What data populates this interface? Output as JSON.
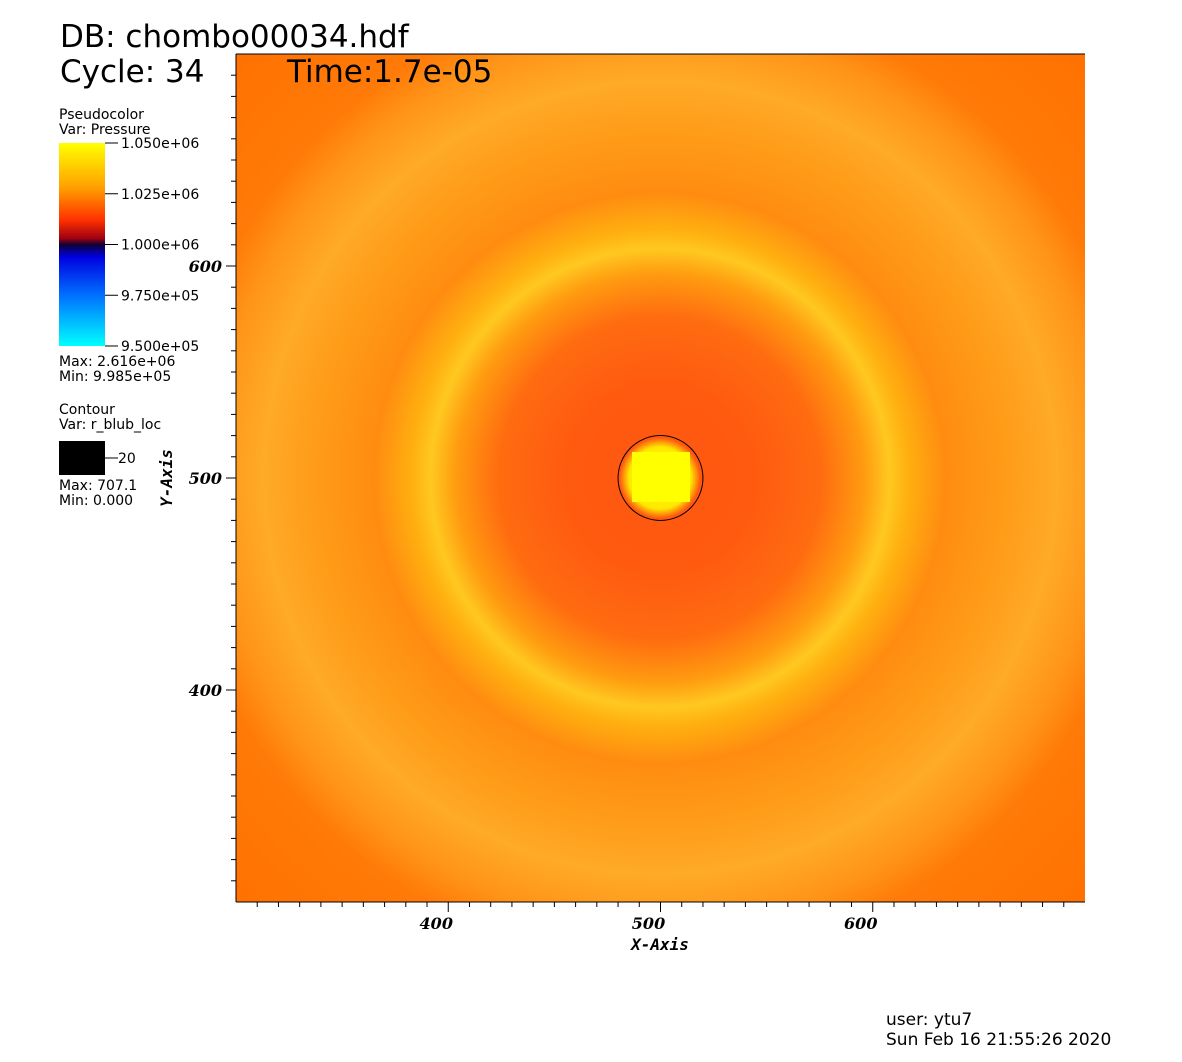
{
  "header": {
    "db": "DB: chombo00034.hdf",
    "cycle": "Cycle: 34",
    "time": "Time:1.7e-05"
  },
  "pseudocolor": {
    "title": "Pseudocolor",
    "var": "Var: Pressure",
    "lim": [
      950000,
      1050000
    ],
    "ticks": [
      {
        "value": 1050000,
        "label": "1.050e+06"
      },
      {
        "value": 1025000,
        "label": "1.025e+06"
      },
      {
        "value": 1000000,
        "label": "1.000e+06"
      },
      {
        "value": 975000,
        "label": "9.750e+05"
      },
      {
        "value": 950000,
        "label": "9.500e+05"
      }
    ],
    "max": "Max: 2.616e+06",
    "min": "Min:  9.985e+05"
  },
  "contour": {
    "title": "Contour",
    "var": "Var: r_blub_loc",
    "levels": [
      20
    ],
    "color": "#000000",
    "max": "Max: 707.1",
    "min": "Min: 0.000"
  },
  "chart_data": {
    "type": "heatmap",
    "xlabel": "X-Axis",
    "ylabel": "Y-Axis",
    "xlim": [
      300,
      700
    ],
    "ylim": [
      300,
      700
    ],
    "xticks": [
      400,
      500,
      600
    ],
    "yticks": [
      400,
      500,
      600
    ],
    "xminorticks": [
      310,
      320,
      330,
      340,
      350,
      360,
      370,
      380,
      390,
      410,
      420,
      430,
      440,
      450,
      460,
      470,
      480,
      490,
      510,
      520,
      530,
      540,
      550,
      560,
      570,
      580,
      590,
      610,
      620,
      630,
      640,
      650,
      660,
      670,
      680,
      690
    ],
    "yminorticks": [
      310,
      320,
      330,
      340,
      350,
      360,
      370,
      380,
      390,
      410,
      420,
      430,
      440,
      450,
      460,
      470,
      480,
      490,
      510,
      520,
      530,
      540,
      550,
      560,
      570,
      580,
      590,
      610,
      620,
      630,
      640,
      650,
      660,
      670,
      680,
      690
    ]
  },
  "footer": {
    "user": "user: ytu7",
    "date": "Sun Feb 16 21:55:26 2020"
  }
}
